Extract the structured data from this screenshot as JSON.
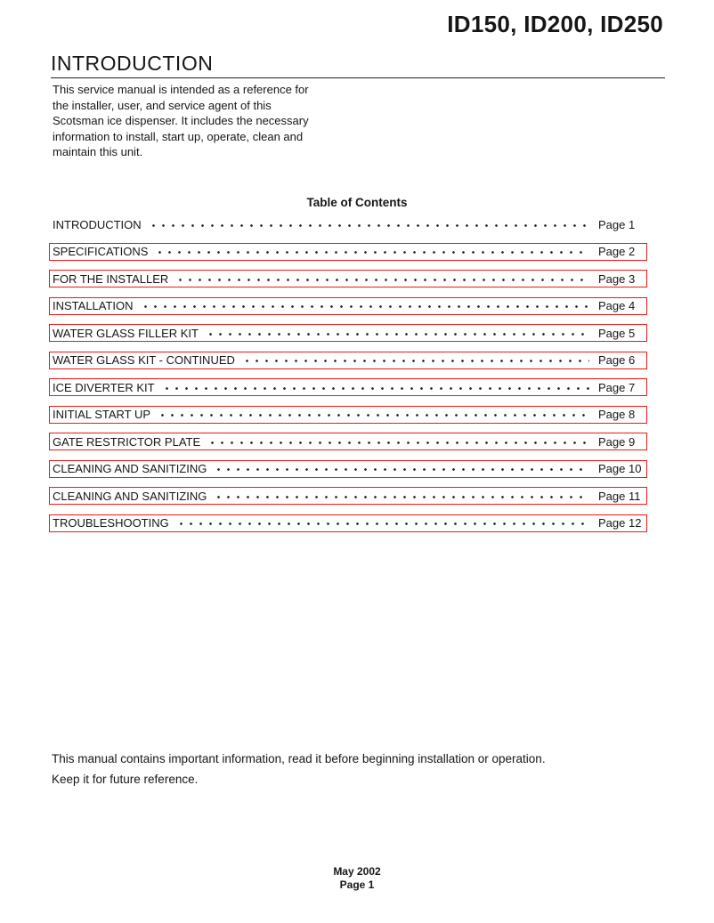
{
  "document": {
    "title": "ID150, ID200, ID250",
    "section": {
      "heading": "INTRODUCTION",
      "paragraph_lines": [
        "This service manual is intended as a reference for",
        "the installer, user, and service agent of this",
        "Scotsman ice dispenser. It includes the necessary",
        "information to install, start up, operate, clean and",
        "maintain this unit."
      ]
    },
    "toc": {
      "heading": "Table of Contents",
      "entries": [
        {
          "label": "INTRODUCTION",
          "page": "Page 1",
          "linked": false
        },
        {
          "label": "SPECIFICATIONS",
          "page": "Page 2",
          "linked": true
        },
        {
          "label": "FOR THE INSTALLER",
          "page": "Page 3",
          "linked": true
        },
        {
          "label": "INSTALLATION",
          "page": "Page 4",
          "linked": true
        },
        {
          "label": "WATER GLASS FILLER KIT",
          "page": "Page 5",
          "linked": true
        },
        {
          "label": "WATER GLASS KIT - CONTINUED",
          "page": "Page 6",
          "linked": true
        },
        {
          "label": "ICE DIVERTER KIT",
          "page": "Page 7",
          "linked": true
        },
        {
          "label": "INITIAL START UP",
          "page": "Page 8",
          "linked": true
        },
        {
          "label": "GATE RESTRICTOR PLATE",
          "page": "Page 9",
          "linked": true
        },
        {
          "label": "CLEANING AND SANITIZING",
          "page": "Page 10",
          "linked": true
        },
        {
          "label": "CLEANING AND SANITIZING",
          "page": "Page 11",
          "linked": true
        },
        {
          "label": "TROUBLESHOOTING",
          "page": "Page 12",
          "linked": true
        }
      ]
    },
    "notice_lines": [
      "This manual contains important information, read it before beginning installation or operation.",
      "Keep it for future reference."
    ],
    "footer": {
      "date": "May 2002",
      "page": "Page 1"
    }
  },
  "colors": {
    "link-box": "#f01818",
    "text": "#161616"
  }
}
